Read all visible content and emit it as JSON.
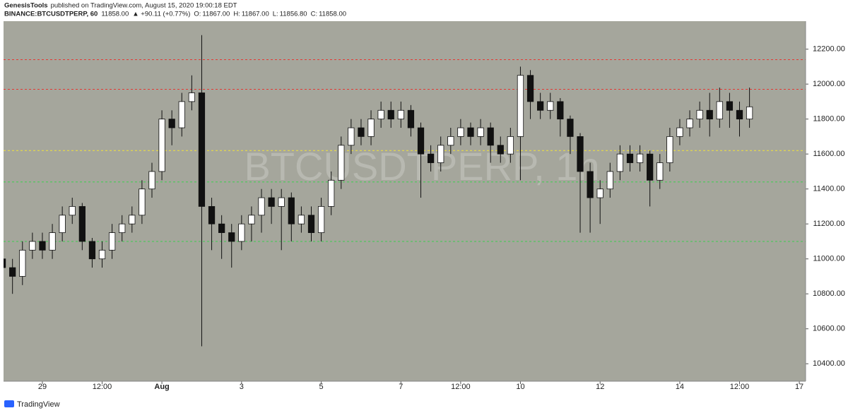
{
  "header": {
    "publisher": "GenesisTools",
    "published": "published on TradingView.com, August 15, 2020 19:00:18 EDT",
    "symbol": "BINANCE:BTCUSDTPERP, 60",
    "last": "11858.00",
    "change": "▲ +90.11 (+0.77%)",
    "ohlc": [
      {
        "label": "O:",
        "value": "11867.00"
      },
      {
        "label": "H:",
        "value": "11867.00"
      },
      {
        "label": "L:",
        "value": "11856.80"
      },
      {
        "label": "C:",
        "value": "11858.00"
      }
    ]
  },
  "chart_data": {
    "type": "candlestick",
    "watermark": "BTCUSDTPERP, 1h",
    "colors": {
      "up": "#ffffff",
      "down": "#111111",
      "wick": "#111111",
      "background": "#a5a69c"
    },
    "x": [
      "2020-07-28T00:00",
      "2020-07-28T06:00",
      "2020-07-28T12:00",
      "2020-07-28T18:00",
      "2020-07-29T00:00",
      "2020-07-29T06:00",
      "2020-07-29T12:00",
      "2020-07-29T18:00",
      "2020-07-30T00:00",
      "2020-07-30T06:00",
      "2020-07-30T12:00",
      "2020-07-30T18:00",
      "2020-07-31T00:00",
      "2020-07-31T06:00",
      "2020-07-31T12:00",
      "2020-07-31T18:00",
      "2020-08-01T00:00",
      "2020-08-01T06:00",
      "2020-08-01T12:00",
      "2020-08-01T18:00",
      "2020-08-02T00:00",
      "2020-08-02T06:00",
      "2020-08-02T12:00",
      "2020-08-02T18:00",
      "2020-08-03T00:00",
      "2020-08-03T06:00",
      "2020-08-03T12:00",
      "2020-08-03T18:00",
      "2020-08-04T00:00",
      "2020-08-04T06:00",
      "2020-08-04T12:00",
      "2020-08-04T18:00",
      "2020-08-05T00:00",
      "2020-08-05T06:00",
      "2020-08-05T12:00",
      "2020-08-05T18:00",
      "2020-08-06T00:00",
      "2020-08-06T06:00",
      "2020-08-06T12:00",
      "2020-08-06T18:00",
      "2020-08-07T00:00",
      "2020-08-07T06:00",
      "2020-08-07T12:00",
      "2020-08-07T18:00",
      "2020-08-08T00:00",
      "2020-08-08T06:00",
      "2020-08-08T12:00",
      "2020-08-08T18:00",
      "2020-08-09T00:00",
      "2020-08-09T06:00",
      "2020-08-09T12:00",
      "2020-08-09T18:00",
      "2020-08-10T00:00",
      "2020-08-10T06:00",
      "2020-08-10T12:00",
      "2020-08-10T18:00",
      "2020-08-11T00:00",
      "2020-08-11T06:00",
      "2020-08-11T12:00",
      "2020-08-11T18:00",
      "2020-08-12T00:00",
      "2020-08-12T06:00",
      "2020-08-12T12:00",
      "2020-08-12T18:00",
      "2020-08-13T00:00",
      "2020-08-13T06:00",
      "2020-08-13T12:00",
      "2020-08-13T18:00",
      "2020-08-14T00:00",
      "2020-08-14T06:00",
      "2020-08-14T12:00",
      "2020-08-14T18:00",
      "2020-08-15T00:00",
      "2020-08-15T06:00",
      "2020-08-15T12:00",
      "2020-08-15T18:00"
    ],
    "open": [
      11000,
      10950,
      10900,
      11050,
      11100,
      11050,
      11150,
      11250,
      11300,
      11100,
      11000,
      11050,
      11150,
      11200,
      11250,
      11400,
      11500,
      11800,
      11750,
      11900,
      11950,
      11300,
      11200,
      11150,
      11100,
      11200,
      11250,
      11350,
      11300,
      11350,
      11200,
      11250,
      11150,
      11300,
      11450,
      11650,
      11750,
      11700,
      11800,
      11850,
      11800,
      11850,
      11750,
      11600,
      11550,
      11650,
      11700,
      11750,
      11700,
      11750,
      11650,
      11600,
      11700,
      12050,
      11900,
      11850,
      11900,
      11800,
      11700,
      11500,
      11350,
      11400,
      11500,
      11600,
      11550,
      11600,
      11450,
      11550,
      11700,
      11750,
      11800,
      11850,
      11800,
      11900,
      11850,
      11800
    ],
    "high": [
      11050,
      11000,
      11100,
      11150,
      11150,
      11200,
      11300,
      11350,
      11320,
      11120,
      11100,
      11200,
      11250,
      11300,
      11450,
      11550,
      11850,
      11850,
      11950,
      12050,
      12280,
      11350,
      11250,
      11200,
      11250,
      11300,
      11400,
      11400,
      11400,
      11380,
      11300,
      11300,
      11350,
      11500,
      11700,
      11800,
      11800,
      11850,
      11900,
      11900,
      11900,
      11880,
      11780,
      11650,
      11700,
      11750,
      11800,
      11780,
      11800,
      11780,
      11700,
      11750,
      12100,
      12080,
      11950,
      11950,
      11920,
      11820,
      11720,
      11550,
      11450,
      11550,
      11650,
      11650,
      11650,
      11620,
      11600,
      11750,
      11800,
      11850,
      11900,
      11950,
      11980,
      11950,
      11900,
      11980
    ],
    "low": [
      10700,
      10800,
      10850,
      11000,
      11000,
      11000,
      11100,
      11200,
      11050,
      10950,
      10950,
      11000,
      11100,
      11150,
      11200,
      11350,
      11450,
      11650,
      11700,
      11850,
      10500,
      11050,
      11000,
      10950,
      11050,
      11100,
      11150,
      11200,
      11050,
      11100,
      11150,
      11100,
      11100,
      11250,
      11400,
      11600,
      11650,
      11650,
      11750,
      11750,
      11750,
      11700,
      11350,
      11500,
      11500,
      11600,
      11650,
      11650,
      11650,
      11550,
      11550,
      11550,
      11450,
      11800,
      11800,
      11800,
      11700,
      11600,
      11150,
      11150,
      11200,
      11350,
      11450,
      11500,
      11500,
      11300,
      11400,
      11500,
      11650,
      11700,
      11750,
      11700,
      11750,
      11750,
      11700,
      11750
    ],
    "close": [
      10950,
      10900,
      11050,
      11100,
      11050,
      11150,
      11250,
      11300,
      11100,
      11000,
      11050,
      11150,
      11200,
      11250,
      11400,
      11500,
      11800,
      11750,
      11900,
      11950,
      11300,
      11200,
      11150,
      11100,
      11200,
      11250,
      11350,
      11300,
      11350,
      11200,
      11250,
      11150,
      11300,
      11450,
      11650,
      11750,
      11700,
      11800,
      11850,
      11800,
      11850,
      11750,
      11600,
      11550,
      11650,
      11700,
      11750,
      11700,
      11750,
      11650,
      11600,
      11700,
      12050,
      11900,
      11850,
      11900,
      11800,
      11700,
      11500,
      11350,
      11400,
      11500,
      11600,
      11550,
      11600,
      11450,
      11550,
      11700,
      11750,
      11800,
      11850,
      11800,
      11900,
      11850,
      11800,
      11870
    ],
    "xlim": [
      "2020-07-28T00:36",
      "2020-08-17T03:48"
    ],
    "xticks": [
      {
        "value": "2020-07-29T00:00",
        "label": "29"
      },
      {
        "value": "2020-07-30T12:00",
        "label": "12:00"
      },
      {
        "value": "2020-08-01T00:00",
        "label": "Aug"
      },
      {
        "value": "2020-08-03T00:00",
        "label": "3"
      },
      {
        "value": "2020-08-05T00:00",
        "label": "5"
      },
      {
        "value": "2020-08-07T00:00",
        "label": "7"
      },
      {
        "value": "2020-08-08T12:00",
        "label": "12:00"
      },
      {
        "value": "2020-08-10T00:00",
        "label": "10"
      },
      {
        "value": "2020-08-12T00:00",
        "label": "12"
      },
      {
        "value": "2020-08-14T00:00",
        "label": "14"
      },
      {
        "value": "2020-08-15T12:00",
        "label": "12:00"
      },
      {
        "value": "2020-08-17T00:00",
        "label": "17"
      }
    ],
    "ylim": [
      10300,
      12360
    ],
    "yticks": [
      {
        "value": 10400,
        "label": "10400.00"
      },
      {
        "value": 10600,
        "label": "10600.00"
      },
      {
        "value": 10800,
        "label": "10800.00"
      },
      {
        "value": 11000,
        "label": "11000.00"
      },
      {
        "value": 11200,
        "label": "11200.00"
      },
      {
        "value": 11400,
        "label": "11400.00"
      },
      {
        "value": 11600,
        "label": "11600.00"
      },
      {
        "value": 11800,
        "label": "11800.00"
      },
      {
        "value": 12000,
        "label": "12000.00"
      },
      {
        "value": 12200,
        "label": "12200.00"
      }
    ],
    "levels": [
      {
        "value": 12140,
        "color": "#e53935"
      },
      {
        "value": 11970,
        "color": "#e53935"
      },
      {
        "value": 11620,
        "color": "#f2e23a"
      },
      {
        "value": 11440,
        "color": "#3ccf4e"
      },
      {
        "value": 11100,
        "color": "#3ccf4e"
      }
    ]
  },
  "footer": {
    "brand": "TradingView"
  }
}
